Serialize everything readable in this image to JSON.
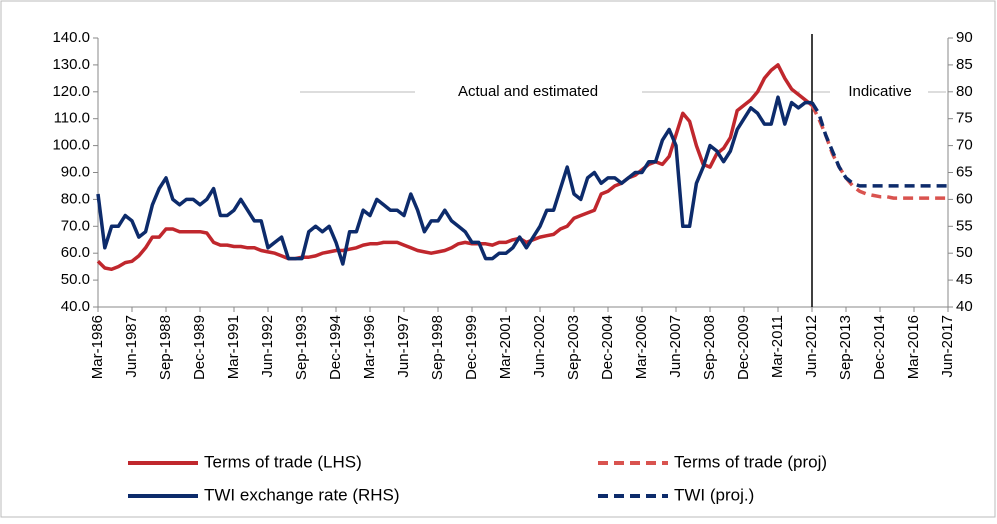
{
  "chart_data": {
    "type": "line",
    "categories": [
      "Mar-1986",
      null,
      null,
      null,
      null,
      "Jun-1987",
      null,
      null,
      null,
      null,
      "Sep-1988",
      null,
      null,
      null,
      null,
      "Dec-1989",
      null,
      null,
      null,
      null,
      "Mar-1991",
      null,
      null,
      null,
      null,
      "Jun-1992",
      null,
      null,
      null,
      null,
      "Sep-1993",
      null,
      null,
      null,
      null,
      "Dec-1994",
      null,
      null,
      null,
      null,
      "Mar-1996",
      null,
      null,
      null,
      null,
      "Jun-1997",
      null,
      null,
      null,
      null,
      "Sep-1998",
      null,
      null,
      null,
      null,
      "Dec-1999",
      null,
      null,
      null,
      null,
      "Mar-2001",
      null,
      null,
      null,
      null,
      "Jun-2002",
      null,
      null,
      null,
      null,
      "Sep-2003",
      null,
      null,
      null,
      null,
      "Dec-2004",
      null,
      null,
      null,
      null,
      "Mar-2006",
      null,
      null,
      null,
      null,
      "Jun-2007",
      null,
      null,
      null,
      null,
      "Sep-2008",
      null,
      null,
      null,
      null,
      "Dec-2009",
      null,
      null,
      null,
      null,
      "Mar-2011",
      null,
      null,
      null,
      null,
      "Jun-2012",
      null,
      null,
      null,
      null,
      "Sep-2013",
      null,
      null,
      null,
      null,
      "Dec-2014",
      null,
      null,
      null,
      null,
      "Mar-2016",
      null,
      null,
      null,
      null,
      "Jun-2017"
    ],
    "series": [
      {
        "name": "Terms of trade (LHS)",
        "color": "#c0272d",
        "dashed": false,
        "values": [
          57,
          54.5,
          54,
          55,
          56.5,
          57,
          59,
          62,
          66,
          66,
          69,
          69,
          68,
          68,
          68,
          68,
          67.5,
          64,
          63,
          63,
          62.5,
          62.5,
          62,
          62,
          61,
          60.5,
          60,
          59,
          58,
          58,
          58.5,
          58.5,
          59,
          60,
          60.5,
          61,
          61,
          61.5,
          62,
          63,
          63.5,
          63.5,
          64,
          64,
          64,
          63,
          62,
          61,
          60.5,
          60,
          60.5,
          61,
          62,
          63.5,
          64,
          63.5,
          63.5,
          63.5,
          63,
          64,
          64,
          65,
          65.5,
          64,
          65,
          66,
          66.5,
          67,
          69,
          70,
          73,
          74,
          75,
          76,
          82,
          83,
          85,
          86,
          88,
          89,
          91,
          93,
          94,
          93,
          96,
          104,
          112,
          109,
          100,
          93,
          92,
          97,
          99,
          103,
          113,
          115,
          117,
          120,
          125,
          128,
          130,
          125,
          121,
          119,
          117,
          115,
          null,
          null,
          null,
          null,
          null,
          null,
          null,
          null,
          null,
          null,
          null,
          null,
          null,
          null,
          null,
          null,
          null,
          null,
          null,
          null
        ]
      },
      {
        "name": "Terms of trade (proj)",
        "color": "#d9534f",
        "dashed": true,
        "values": [
          null,
          null,
          null,
          null,
          null,
          null,
          null,
          null,
          null,
          null,
          null,
          null,
          null,
          null,
          null,
          null,
          null,
          null,
          null,
          null,
          null,
          null,
          null,
          null,
          null,
          null,
          null,
          null,
          null,
          null,
          null,
          null,
          null,
          null,
          null,
          null,
          null,
          null,
          null,
          null,
          null,
          null,
          null,
          null,
          null,
          null,
          null,
          null,
          null,
          null,
          null,
          null,
          null,
          null,
          null,
          null,
          null,
          null,
          null,
          null,
          null,
          null,
          null,
          null,
          null,
          null,
          null,
          null,
          null,
          null,
          null,
          null,
          null,
          null,
          null,
          null,
          null,
          null,
          null,
          null,
          null,
          null,
          null,
          null,
          null,
          null,
          null,
          null,
          null,
          null,
          null,
          null,
          null,
          null,
          null,
          null,
          null,
          null,
          null,
          null,
          null,
          null,
          null,
          null,
          null,
          115,
          110,
          104,
          97,
          92,
          88,
          85,
          83,
          82,
          81.5,
          81,
          81,
          80.5,
          80.5,
          80.5,
          80.5,
          80.5,
          80.5,
          80.5,
          80.5,
          80.5
        ]
      },
      {
        "name": "TWI exchange rate (RHS)",
        "color": "#0d2b6b",
        "dashed": false,
        "axis": "y2",
        "values": [
          61,
          51,
          55,
          55,
          57,
          56,
          53,
          54,
          59,
          62,
          64,
          60,
          59,
          60,
          60,
          59,
          60,
          62,
          57,
          57,
          58,
          60,
          58,
          56,
          56,
          51,
          52,
          53,
          49,
          49,
          49,
          54,
          55,
          54,
          55,
          52,
          48,
          54,
          54,
          58,
          57,
          60,
          59,
          58,
          58,
          57,
          61,
          58,
          54,
          56,
          56,
          58,
          56,
          55,
          54,
          52,
          52,
          49,
          49,
          50,
          50,
          51,
          53,
          51,
          53,
          55,
          58,
          58,
          62,
          66,
          61,
          60,
          64,
          65,
          63,
          64,
          64,
          63,
          64,
          65,
          65,
          67,
          67,
          71,
          73,
          70,
          55,
          55,
          63,
          66,
          70,
          69,
          67,
          69,
          73,
          75,
          77,
          76,
          74,
          74,
          79,
          74,
          78,
          77,
          78,
          78,
          null,
          null,
          null,
          null,
          null,
          null,
          null,
          null,
          null,
          null,
          null,
          null,
          null,
          null,
          null,
          null,
          null,
          null,
          null,
          null
        ]
      },
      {
        "name": "TWI (proj.)",
        "color": "#0d2b6b",
        "dashed": true,
        "axis": "y2",
        "values": [
          null,
          null,
          null,
          null,
          null,
          null,
          null,
          null,
          null,
          null,
          null,
          null,
          null,
          null,
          null,
          null,
          null,
          null,
          null,
          null,
          null,
          null,
          null,
          null,
          null,
          null,
          null,
          null,
          null,
          null,
          null,
          null,
          null,
          null,
          null,
          null,
          null,
          null,
          null,
          null,
          null,
          null,
          null,
          null,
          null,
          null,
          null,
          null,
          null,
          null,
          null,
          null,
          null,
          null,
          null,
          null,
          null,
          null,
          null,
          null,
          null,
          null,
          null,
          null,
          null,
          null,
          null,
          null,
          null,
          null,
          null,
          null,
          null,
          null,
          null,
          null,
          null,
          null,
          null,
          null,
          null,
          null,
          null,
          null,
          null,
          null,
          null,
          null,
          null,
          null,
          null,
          null,
          null,
          null,
          null,
          null,
          null,
          null,
          null,
          null,
          null,
          null,
          null,
          null,
          null,
          78,
          76,
          72,
          69,
          66,
          64,
          63,
          62.5,
          62.5,
          62.5,
          62.5,
          62.5,
          62.5,
          62.5,
          62.5,
          62.5,
          62.5,
          62.5,
          62.5,
          62.5,
          62.5
        ]
      }
    ],
    "ylim": [
      40,
      140
    ],
    "yticks": [
      {
        "value": 40,
        "label": "40.0"
      },
      {
        "value": 50,
        "label": "50.0"
      },
      {
        "value": 60,
        "label": "60.0"
      },
      {
        "value": 70,
        "label": "70.0"
      },
      {
        "value": 80,
        "label": "80.0"
      },
      {
        "value": 90,
        "label": "90.0"
      },
      {
        "value": 100,
        "label": "100.0"
      },
      {
        "value": 110,
        "label": "110.0"
      },
      {
        "value": 120,
        "label": "120.0"
      },
      {
        "value": 130,
        "label": "130.0"
      },
      {
        "value": 140,
        "label": "140.0"
      }
    ],
    "y2lim": [
      40,
      90
    ],
    "y2ticks": [
      40,
      45,
      50,
      55,
      60,
      65,
      70,
      75,
      80,
      85,
      90
    ],
    "annotations": [
      {
        "text": "Actual and estimated"
      },
      {
        "text": "Indicative"
      }
    ],
    "legend": "bottom"
  }
}
